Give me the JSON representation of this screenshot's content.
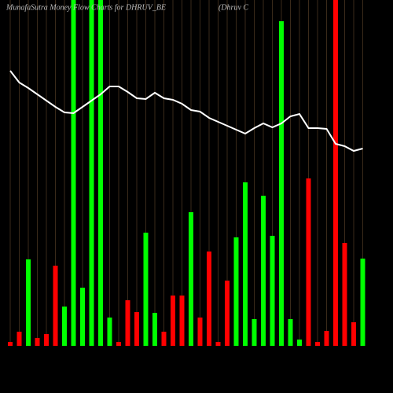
{
  "chart_data": {
    "type": "bar",
    "title": "MunafaSutra  Money Flow  Charts for DHRUV_BE",
    "subtitle": "(Dhruv  C",
    "values": [
      5,
      18,
      110,
      10,
      15,
      102,
      50,
      440,
      74,
      440,
      440,
      36,
      5,
      58,
      43,
      144,
      42,
      18,
      64,
      64,
      170,
      36,
      120,
      5,
      83,
      138,
      208,
      34,
      191,
      140,
      413,
      34,
      8,
      213,
      5,
      19,
      440,
      131,
      30,
      111
    ],
    "colors": [
      "#ff0000",
      "#ff0000",
      "#00ff00",
      "#ff0000",
      "#ff0000",
      "#ff0000",
      "#00ff00",
      "#00ff00",
      "#00ff00",
      "#00ff00",
      "#00ff00",
      "#00ff00",
      "#ff0000",
      "#ff0000",
      "#ff0000",
      "#00ff00",
      "#00ff00",
      "#ff0000",
      "#ff0000",
      "#ff0000",
      "#00ff00",
      "#ff0000",
      "#ff0000",
      "#ff0000",
      "#ff0000",
      "#00ff00",
      "#00ff00",
      "#00ff00",
      "#00ff00",
      "#00ff00",
      "#00ff00",
      "#00ff00",
      "#00ff00",
      "#ff0000",
      "#ff0000",
      "#ff0000",
      "#ff0000",
      "#ff0000",
      "#ff0000",
      "#00ff00"
    ],
    "line_values": [
      350,
      335,
      328,
      320,
      312,
      304,
      297,
      296,
      304,
      312,
      320,
      330,
      330,
      323,
      315,
      314,
      322,
      315,
      313,
      308,
      300,
      298,
      290,
      285,
      280,
      275,
      270,
      277,
      283,
      278,
      283,
      292,
      295,
      277,
      277,
      276,
      257,
      254,
      248,
      251
    ],
    "line_color": "#ffffff",
    "ylim": [
      0,
      440
    ]
  }
}
